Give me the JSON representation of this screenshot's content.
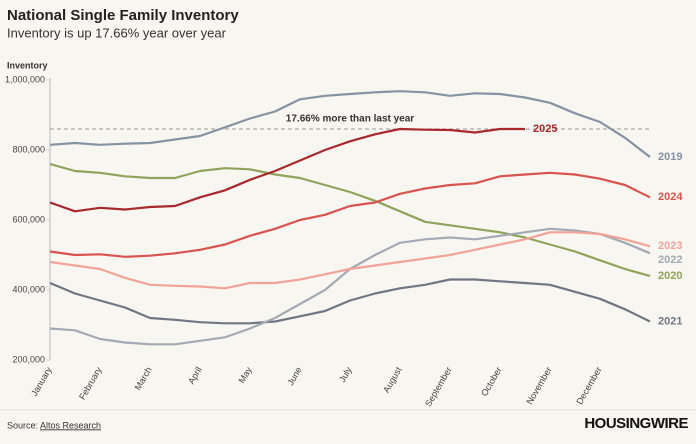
{
  "chart_data": {
    "type": "line",
    "title": "National Single Family Inventory",
    "subtitle": "Inventory is up 17.66% year over year",
    "y_label": "Inventory",
    "categories": [
      "January",
      null,
      "February",
      null,
      "March",
      null,
      "April",
      null,
      "May",
      null,
      "June",
      null,
      "July",
      null,
      "August",
      null,
      "September",
      null,
      "October",
      null,
      "November",
      null,
      "December",
      null,
      null
    ],
    "series": [
      {
        "name": "2019",
        "color": "#8593a3",
        "values": [
          815000,
          820000,
          815000,
          818000,
          820000,
          830000,
          840000,
          865000,
          890000,
          910000,
          945000,
          955000,
          960000,
          965000,
          968000,
          965000,
          955000,
          962000,
          960000,
          950000,
          935000,
          905000,
          880000,
          835000,
          780000
        ]
      },
      {
        "name": "2020",
        "color": "#8fa35a",
        "values": [
          760000,
          740000,
          735000,
          725000,
          720000,
          720000,
          740000,
          748000,
          745000,
          730000,
          720000,
          700000,
          680000,
          655000,
          625000,
          595000,
          585000,
          575000,
          565000,
          550000,
          530000,
          510000,
          485000,
          460000,
          440000
        ]
      },
      {
        "name": "2021",
        "color": "#6f7782",
        "values": [
          420000,
          390000,
          370000,
          350000,
          320000,
          315000,
          308000,
          305000,
          305000,
          310000,
          325000,
          340000,
          370000,
          390000,
          405000,
          415000,
          430000,
          430000,
          425000,
          420000,
          415000,
          395000,
          375000,
          345000,
          310000
        ]
      },
      {
        "name": "2022",
        "color": "#a3aab3",
        "values": [
          290000,
          285000,
          260000,
          250000,
          245000,
          245000,
          255000,
          265000,
          290000,
          320000,
          360000,
          400000,
          460000,
          500000,
          535000,
          545000,
          550000,
          545000,
          555000,
          565000,
          575000,
          570000,
          560000,
          535000,
          505000
        ]
      },
      {
        "name": "2023",
        "color": "#f2a397",
        "values": [
          480000,
          470000,
          460000,
          435000,
          415000,
          412000,
          410000,
          405000,
          420000,
          420000,
          430000,
          445000,
          460000,
          470000,
          480000,
          490000,
          500000,
          515000,
          530000,
          545000,
          565000,
          565000,
          560000,
          545000,
          525000
        ]
      },
      {
        "name": "2024",
        "color": "#d9534f",
        "values": [
          510000,
          500000,
          502000,
          495000,
          498000,
          505000,
          515000,
          530000,
          555000,
          575000,
          600000,
          615000,
          640000,
          650000,
          675000,
          690000,
          700000,
          705000,
          725000,
          730000,
          735000,
          730000,
          718000,
          700000,
          665000
        ]
      },
      {
        "name": "2025",
        "color": "#a8282c",
        "values": [
          650000,
          625000,
          635000,
          630000,
          637000,
          640000,
          665000,
          685000,
          715000,
          740000,
          770000,
          800000,
          825000,
          845000,
          860000,
          858000,
          857000,
          850000,
          860000,
          860000,
          null,
          null,
          null,
          null,
          null
        ]
      }
    ],
    "reference_line": {
      "value": 860000,
      "label": "17.66% more than last year"
    },
    "ylim": [
      200000,
      1000000
    ],
    "yticks": [
      {
        "value": 200000,
        "label": "200,000"
      },
      {
        "value": 400000,
        "label": "400,000"
      },
      {
        "value": 600000,
        "label": "600,000"
      },
      {
        "value": 800000,
        "label": "800,000"
      },
      {
        "value": 1000000,
        "label": "1,000,000"
      }
    ],
    "grid": false,
    "source": {
      "prefix": "Source:",
      "link": "Altos Research"
    },
    "brand": "HOUSINGWIRE"
  }
}
